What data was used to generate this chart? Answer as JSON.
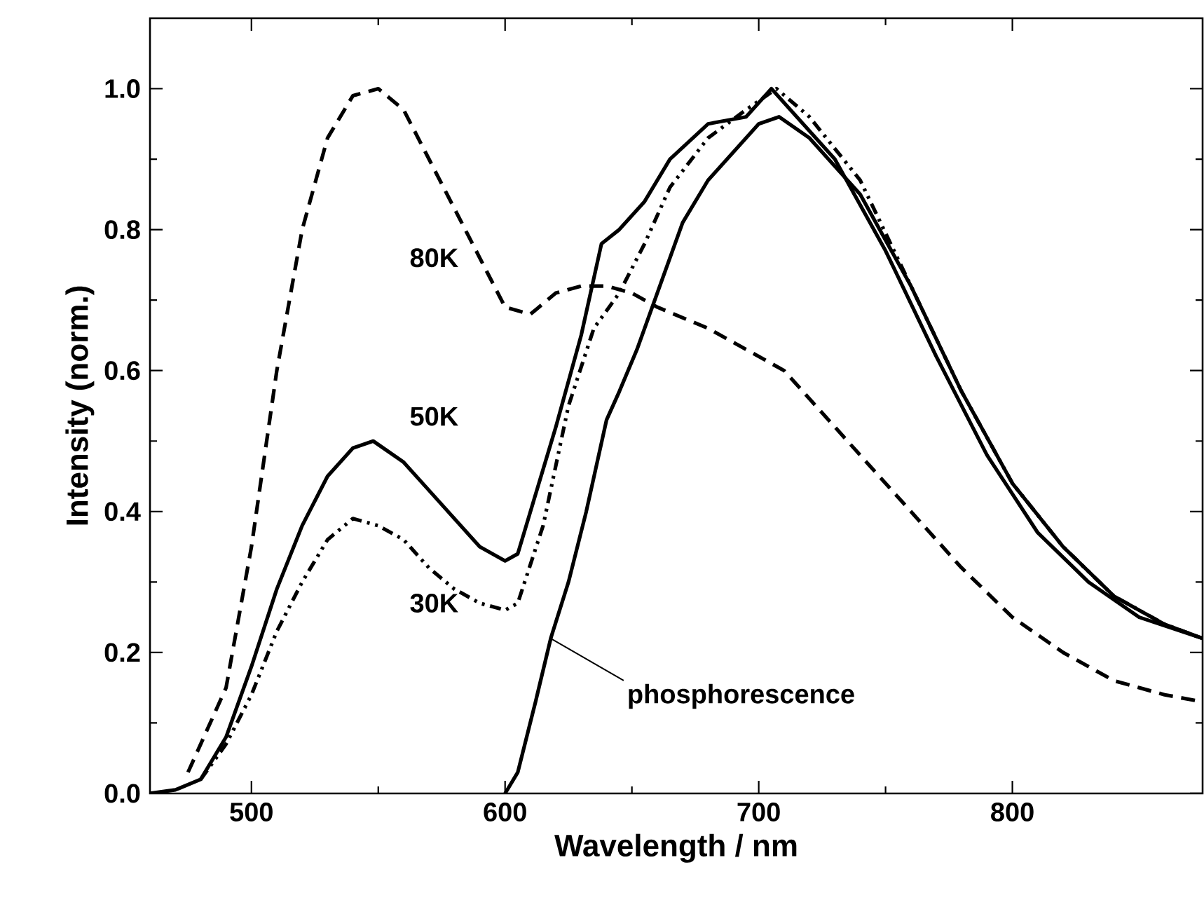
{
  "chart_data": {
    "type": "line",
    "xlabel": "Wavelength / nm",
    "ylabel": "Intensity (norm.)",
    "xlim": [
      460,
      875
    ],
    "ylim": [
      0,
      1.1
    ],
    "xticks": [
      500,
      600,
      700,
      800
    ],
    "yticks": [
      {
        "value": 0,
        "label": "0.0"
      },
      {
        "value": 0.2,
        "label": "0.2"
      },
      {
        "value": 0.4,
        "label": "0.4"
      },
      {
        "value": 0.6,
        "label": "0.6"
      },
      {
        "value": 0.8,
        "label": "0.8"
      },
      {
        "value": 1.0,
        "label": "1.0"
      }
    ],
    "grid": false,
    "legend": false,
    "marker": "none",
    "series": [
      {
        "name": "80K",
        "color": "#000000",
        "line_style": "dashed",
        "x": [
          475,
          490,
          500,
          510,
          520,
          530,
          540,
          550,
          560,
          570,
          580,
          590,
          600,
          610,
          620,
          630,
          640,
          650,
          660,
          680,
          700,
          710,
          720,
          740,
          760,
          780,
          800,
          820,
          840,
          860,
          875
        ],
        "values": [
          0.03,
          0.15,
          0.35,
          0.6,
          0.8,
          0.93,
          0.99,
          1.0,
          0.97,
          0.9,
          0.83,
          0.76,
          0.69,
          0.68,
          0.71,
          0.72,
          0.72,
          0.71,
          0.69,
          0.66,
          0.62,
          0.6,
          0.56,
          0.48,
          0.4,
          0.32,
          0.25,
          0.2,
          0.16,
          0.14,
          0.13
        ]
      },
      {
        "name": "50K",
        "color": "#000000",
        "line_style": "solid",
        "x": [
          460,
          470,
          480,
          490,
          500,
          510,
          520,
          530,
          540,
          548,
          560,
          570,
          580,
          590,
          600,
          605,
          610,
          620,
          630,
          638,
          645,
          655,
          665,
          680,
          695,
          705,
          715,
          730,
          750,
          770,
          790,
          810,
          830,
          850,
          875
        ],
        "values": [
          0.0,
          0.005,
          0.02,
          0.08,
          0.18,
          0.29,
          0.38,
          0.45,
          0.49,
          0.5,
          0.47,
          0.43,
          0.39,
          0.35,
          0.33,
          0.34,
          0.4,
          0.52,
          0.65,
          0.78,
          0.8,
          0.84,
          0.9,
          0.95,
          0.96,
          1.0,
          0.96,
          0.9,
          0.77,
          0.62,
          0.48,
          0.37,
          0.3,
          0.25,
          0.22
        ]
      },
      {
        "name": "30K",
        "color": "#000000",
        "line_style": "dashdotdotted",
        "x": [
          480,
          490,
          500,
          510,
          520,
          530,
          540,
          550,
          560,
          570,
          580,
          590,
          600,
          605,
          615,
          625,
          635,
          645,
          655,
          665,
          680,
          695,
          707,
          720,
          740,
          760,
          780,
          800,
          820,
          840,
          860,
          875
        ],
        "values": [
          0.02,
          0.07,
          0.14,
          0.23,
          0.3,
          0.36,
          0.39,
          0.38,
          0.36,
          0.32,
          0.29,
          0.27,
          0.26,
          0.27,
          0.38,
          0.55,
          0.66,
          0.71,
          0.78,
          0.86,
          0.93,
          0.97,
          1.0,
          0.96,
          0.87,
          0.72,
          0.57,
          0.44,
          0.35,
          0.28,
          0.24,
          0.22
        ]
      },
      {
        "color": "#000000",
        "line_style": "solid",
        "x": [
          600,
          605,
          612,
          618,
          625,
          632,
          640,
          645,
          652,
          660,
          670,
          680,
          690,
          700,
          708,
          720,
          740,
          760,
          780,
          800,
          820,
          840,
          860,
          875
        ],
        "values": [
          0.0,
          0.03,
          0.13,
          0.22,
          0.3,
          0.4,
          0.53,
          0.57,
          0.63,
          0.71,
          0.81,
          0.87,
          0.91,
          0.95,
          0.96,
          0.93,
          0.85,
          0.72,
          0.57,
          0.44,
          0.35,
          0.28,
          0.24,
          0.22
        ]
      }
    ],
    "annotations": [
      {
        "text": "phosphorescence",
        "x": 618,
        "y": 0.22
      }
    ]
  }
}
